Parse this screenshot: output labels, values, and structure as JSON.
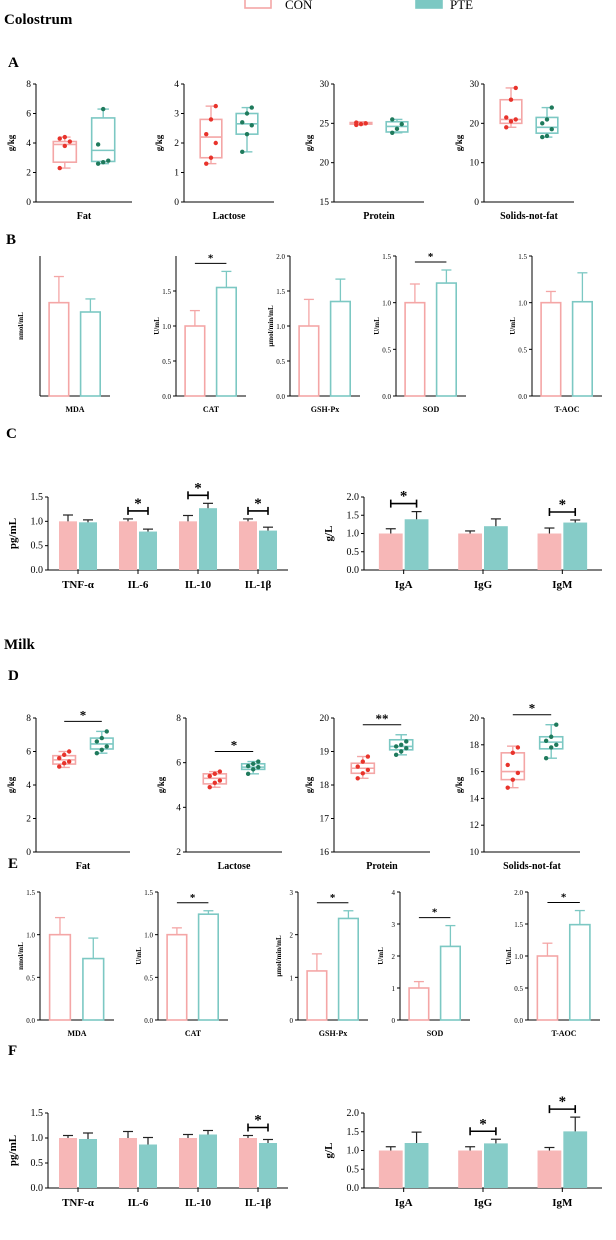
{
  "figure": {
    "legend": {
      "labels": [
        "CON",
        "PTE"
      ]
    },
    "sections": {
      "colostrum": "Colostrum",
      "milk": "Milk"
    },
    "panels": {
      "A": "A",
      "B": "B",
      "C": "C",
      "D": "D",
      "E": "E",
      "F": "F"
    }
  },
  "colors": {
    "con": "#f4a6a6",
    "pte": "#7cc8c3",
    "con_fill": "#f7b7b7",
    "pte_fill": "#86ccc8",
    "con_dot": "#e8332b",
    "pte_dot": "#1f7a5c"
  },
  "chart_data": [
    {
      "id": "A1",
      "type": "box",
      "xlabel": "Fat",
      "ylabel": "g/kg",
      "ylim": [
        0,
        8
      ],
      "ticks": [
        0,
        2,
        4,
        6,
        8
      ],
      "series": [
        {
          "name": "CON",
          "min": 2.3,
          "q1": 2.7,
          "median": 3.9,
          "q3": 4.1,
          "max": 4.4,
          "points": [
            2.3,
            3.8,
            4.1,
            4.3,
            4.4
          ]
        },
        {
          "name": "PTE",
          "min": 2.6,
          "q1": 2.75,
          "median": 3.5,
          "q3": 5.7,
          "max": 6.3,
          "points": [
            2.6,
            2.7,
            2.8,
            3.9,
            6.3
          ]
        }
      ]
    },
    {
      "id": "A2",
      "type": "box",
      "xlabel": "Lactose",
      "ylabel": "g/kg",
      "ylim": [
        0,
        4
      ],
      "ticks": [
        0,
        1,
        2,
        3,
        4
      ],
      "series": [
        {
          "name": "CON",
          "min": 1.3,
          "q1": 1.5,
          "median": 2.2,
          "q3": 2.8,
          "max": 3.25,
          "points": [
            1.3,
            1.5,
            2.0,
            2.3,
            2.8,
            3.25
          ]
        },
        {
          "name": "PTE",
          "min": 1.7,
          "q1": 2.3,
          "median": 2.65,
          "q3": 3.0,
          "max": 3.2,
          "points": [
            1.7,
            2.3,
            2.6,
            2.7,
            3.0,
            3.2
          ]
        }
      ]
    },
    {
      "id": "A3",
      "type": "box",
      "xlabel": "Protein",
      "ylabel": "g/kg",
      "ylim": [
        15,
        30
      ],
      "ticks": [
        15,
        20,
        25,
        30
      ],
      "series": [
        {
          "name": "CON",
          "min": 24.8,
          "q1": 24.9,
          "median": 25.0,
          "q3": 25.1,
          "max": 25.2,
          "points": [
            24.8,
            24.9,
            25.0,
            25.1
          ]
        },
        {
          "name": "PTE",
          "min": 23.8,
          "q1": 23.9,
          "median": 24.6,
          "q3": 25.2,
          "max": 25.5,
          "points": [
            23.8,
            24.3,
            24.9,
            25.5
          ]
        }
      ]
    },
    {
      "id": "A4",
      "type": "box",
      "xlabel": "Solids-not-fat",
      "ylabel": "g/kg",
      "ylim": [
        0,
        30
      ],
      "ticks": [
        0,
        10,
        20,
        30
      ],
      "series": [
        {
          "name": "CON",
          "min": 19.0,
          "q1": 20.0,
          "median": 21.0,
          "q3": 26.0,
          "max": 29.0,
          "points": [
            19.0,
            20.5,
            21.0,
            21.5,
            26.0,
            29.0
          ]
        },
        {
          "name": "PTE",
          "min": 16.5,
          "q1": 17.5,
          "median": 19.0,
          "q3": 21.5,
          "max": 24.0,
          "points": [
            16.5,
            16.8,
            18.5,
            20.0,
            21.0,
            24.0
          ]
        }
      ]
    },
    {
      "id": "B1",
      "type": "bar",
      "style": "outline",
      "xlabel": "MDA",
      "ylabel": "nmol/mL",
      "ylim": [
        0,
        1.5
      ],
      "ticks": [],
      "tick_labels": [],
      "series": [
        {
          "name": "CON",
          "value": 1.0,
          "error": 0.28
        },
        {
          "name": "PTE",
          "value": 0.9,
          "error": 0.14
        }
      ],
      "sig": null
    },
    {
      "id": "B2",
      "type": "bar",
      "style": "outline",
      "xlabel": "CAT",
      "ylabel": "U/mL",
      "ylim": [
        0,
        2.0
      ],
      "ticks": [
        0,
        0.5,
        1.0,
        1.5
      ],
      "tick_labels": [
        "0.0",
        "0.5",
        "1.0",
        "1.5"
      ],
      "series": [
        {
          "name": "CON",
          "value": 1.0,
          "error": 0.22
        },
        {
          "name": "PTE",
          "value": 1.55,
          "error": 0.23
        }
      ],
      "sig": "*"
    },
    {
      "id": "B3",
      "type": "bar",
      "style": "outline",
      "xlabel": "GSH-Px",
      "ylabel": "μmol/min/mL",
      "ylim": [
        0,
        2.0
      ],
      "ticks": [
        0,
        0.5,
        1.0,
        1.5,
        2.0
      ],
      "tick_labels": [
        "0.0",
        "0.5",
        "1.0",
        "1.5",
        "2.0"
      ],
      "series": [
        {
          "name": "CON",
          "value": 1.0,
          "error": 0.38
        },
        {
          "name": "PTE",
          "value": 1.35,
          "error": 0.32
        }
      ],
      "sig": null
    },
    {
      "id": "B4",
      "type": "bar",
      "style": "outline",
      "xlabel": "SOD",
      "ylabel": "U/mL",
      "ylim": [
        0,
        1.5
      ],
      "ticks": [
        0,
        0.5,
        1.0,
        1.5
      ],
      "tick_labels": [
        "0.0",
        "0.5",
        "1.0",
        "1.5"
      ],
      "series": [
        {
          "name": "CON",
          "value": 1.0,
          "error": 0.2
        },
        {
          "name": "PTE",
          "value": 1.21,
          "error": 0.14
        }
      ],
      "sig": "*"
    },
    {
      "id": "B5",
      "type": "bar",
      "style": "outline",
      "xlabel": "T-AOC",
      "ylabel": "U/mL",
      "ylim": [
        0,
        1.5
      ],
      "ticks": [
        0,
        0.5,
        1.0,
        1.5
      ],
      "tick_labels": [
        "0.0",
        "0.5",
        "1.0",
        "1.5"
      ],
      "series": [
        {
          "name": "CON",
          "value": 1.0,
          "error": 0.12
        },
        {
          "name": "PTE",
          "value": 1.01,
          "error": 0.31
        }
      ],
      "sig": null
    },
    {
      "id": "C1",
      "type": "grouped_bar",
      "style": "filled",
      "ylabel": "pg/mL",
      "ylim": [
        0,
        1.5
      ],
      "ticks": [
        0,
        0.5,
        1.0,
        1.5
      ],
      "tick_labels": [
        "0.0",
        "0.5",
        "1.0",
        "1.5"
      ],
      "categories": [
        "TNF-α",
        "IL-6",
        "IL-10",
        "IL-1β"
      ],
      "series": [
        {
          "name": "CON",
          "values": [
            1.0,
            1.0,
            1.0,
            1.0
          ],
          "errors": [
            0.13,
            0.05,
            0.12,
            0.05
          ]
        },
        {
          "name": "PTE",
          "values": [
            0.98,
            0.79,
            1.27,
            0.81
          ],
          "errors": [
            0.05,
            0.05,
            0.1,
            0.07
          ]
        }
      ],
      "sig": [
        null,
        "*",
        "*",
        "*"
      ]
    },
    {
      "id": "C2",
      "type": "grouped_bar",
      "style": "filled",
      "ylabel": "g/L",
      "ylim": [
        0,
        2.0
      ],
      "ticks": [
        0,
        0.5,
        1.0,
        1.5,
        2.0
      ],
      "tick_labels": [
        "0.0",
        "0.5",
        "1.0",
        "1.5",
        "2.0"
      ],
      "categories": [
        "IgA",
        "IgG",
        "IgM"
      ],
      "series": [
        {
          "name": "CON",
          "values": [
            1.0,
            1.0,
            1.0
          ],
          "errors": [
            0.13,
            0.07,
            0.15
          ]
        },
        {
          "name": "PTE",
          "values": [
            1.39,
            1.2,
            1.3
          ],
          "errors": [
            0.21,
            0.2,
            0.07
          ]
        }
      ],
      "sig": [
        "*",
        null,
        "*"
      ]
    },
    {
      "id": "D1",
      "type": "box",
      "xlabel": "Fat",
      "ylabel": "g/kg",
      "ylim": [
        0,
        8
      ],
      "ticks": [
        0,
        2,
        4,
        6,
        8
      ],
      "sig": "*",
      "series": [
        {
          "name": "CON",
          "min": 5.05,
          "q1": 5.25,
          "median": 5.5,
          "q3": 5.75,
          "max": 6.0,
          "points": [
            5.1,
            5.3,
            5.4,
            5.6,
            5.8,
            6.0
          ]
        },
        {
          "name": "PTE",
          "min": 5.9,
          "q1": 6.15,
          "median": 6.45,
          "q3": 6.8,
          "max": 7.2,
          "points": [
            5.9,
            6.1,
            6.3,
            6.6,
            6.8,
            7.2
          ]
        }
      ]
    },
    {
      "id": "D2",
      "type": "box",
      "xlabel": "Lactose",
      "ylabel": "g/kg",
      "ylim": [
        2,
        8
      ],
      "ticks": [
        2,
        4,
        6,
        8
      ],
      "sig": "*",
      "series": [
        {
          "name": "CON",
          "min": 4.9,
          "q1": 5.05,
          "median": 5.3,
          "q3": 5.5,
          "max": 5.6,
          "points": [
            4.9,
            5.1,
            5.2,
            5.4,
            5.5,
            5.6
          ]
        },
        {
          "name": "PTE",
          "min": 5.5,
          "q1": 5.7,
          "median": 5.8,
          "q3": 5.95,
          "max": 6.05,
          "points": [
            5.5,
            5.7,
            5.8,
            5.85,
            5.95,
            6.05
          ]
        }
      ]
    },
    {
      "id": "D3",
      "type": "box",
      "xlabel": "Protein",
      "ylabel": "g/kg",
      "ylim": [
        16,
        20
      ],
      "ticks": [
        16,
        17,
        18,
        19,
        20
      ],
      "sig": "**",
      "series": [
        {
          "name": "CON",
          "min": 18.2,
          "q1": 18.35,
          "median": 18.5,
          "q3": 18.65,
          "max": 18.85,
          "points": [
            18.2,
            18.35,
            18.45,
            18.55,
            18.7,
            18.85
          ]
        },
        {
          "name": "PTE",
          "min": 18.9,
          "q1": 19.05,
          "median": 19.15,
          "q3": 19.35,
          "max": 19.5,
          "points": [
            18.9,
            19.0,
            19.1,
            19.15,
            19.2,
            19.3
          ]
        }
      ]
    },
    {
      "id": "D4",
      "type": "box",
      "xlabel": "Solids-not-fat",
      "ylabel": "g/kg",
      "ylim": [
        10,
        20
      ],
      "ticks": [
        10,
        12,
        14,
        16,
        18,
        20
      ],
      "sig": "*",
      "series": [
        {
          "name": "CON",
          "min": 14.8,
          "q1": 15.4,
          "median": 16.0,
          "q3": 17.4,
          "max": 17.9,
          "points": [
            14.8,
            15.4,
            15.9,
            16.5,
            17.4,
            17.8
          ]
        },
        {
          "name": "PTE",
          "min": 17.0,
          "q1": 17.7,
          "median": 18.2,
          "q3": 18.6,
          "max": 19.5,
          "points": [
            17.0,
            17.8,
            18.0,
            18.3,
            18.6,
            19.5
          ]
        }
      ]
    },
    {
      "id": "E1",
      "type": "bar",
      "style": "outline",
      "xlabel": "MDA",
      "ylabel": "nmol/mL",
      "ylim": [
        0,
        1.5
      ],
      "ticks": [
        0,
        0.5,
        1.0,
        1.5
      ],
      "tick_labels": [
        "0.0",
        "0.5",
        "1.0",
        "1.5"
      ],
      "series": [
        {
          "name": "CON",
          "value": 1.0,
          "error": 0.2
        },
        {
          "name": "PTE",
          "value": 0.72,
          "error": 0.24
        }
      ],
      "sig": null
    },
    {
      "id": "E2",
      "type": "bar",
      "style": "outline",
      "xlabel": "CAT",
      "ylabel": "U/mL",
      "ylim": [
        0,
        1.5
      ],
      "ticks": [
        0,
        0.5,
        1.0,
        1.5
      ],
      "tick_labels": [
        "0.0",
        "0.5",
        "1.0",
        "1.5"
      ],
      "series": [
        {
          "name": "CON",
          "value": 1.0,
          "error": 0.08
        },
        {
          "name": "PTE",
          "value": 1.24,
          "error": 0.04
        }
      ],
      "sig": "*"
    },
    {
      "id": "E3",
      "type": "bar",
      "style": "outline",
      "xlabel": "GSH-Px",
      "ylabel": "μmol/min/mL",
      "ylim": [
        0,
        3
      ],
      "ticks": [
        0,
        1,
        2,
        3
      ],
      "tick_labels": [
        "0",
        "1",
        "2",
        "3"
      ],
      "series": [
        {
          "name": "CON",
          "value": 1.15,
          "error": 0.4
        },
        {
          "name": "PTE",
          "value": 2.38,
          "error": 0.18
        }
      ],
      "sig": "*"
    },
    {
      "id": "E4",
      "type": "bar",
      "style": "outline",
      "xlabel": "SOD",
      "ylabel": "U/mL",
      "ylim": [
        0,
        4
      ],
      "ticks": [
        0,
        1,
        2,
        3,
        4
      ],
      "tick_labels": [
        "0",
        "1",
        "2",
        "3",
        "4"
      ],
      "series": [
        {
          "name": "CON",
          "value": 1.0,
          "error": 0.2
        },
        {
          "name": "PTE",
          "value": 2.3,
          "error": 0.65
        }
      ],
      "sig": "*"
    },
    {
      "id": "E5",
      "type": "bar",
      "style": "outline",
      "xlabel": "T-AOC",
      "ylabel": "U/mL",
      "ylim": [
        0,
        2.0
      ],
      "ticks": [
        0,
        0.5,
        1.0,
        1.5,
        2.0
      ],
      "tick_labels": [
        "0.0",
        "0.5",
        "1.0",
        "1.5",
        "2.0"
      ],
      "series": [
        {
          "name": "CON",
          "value": 1.0,
          "error": 0.2
        },
        {
          "name": "PTE",
          "value": 1.49,
          "error": 0.22
        }
      ],
      "sig": "*"
    },
    {
      "id": "F1",
      "type": "grouped_bar",
      "style": "filled",
      "ylabel": "pg/mL",
      "ylim": [
        0,
        1.5
      ],
      "ticks": [
        0,
        0.5,
        1.0,
        1.5
      ],
      "tick_labels": [
        "0.0",
        "0.5",
        "1.0",
        "1.5"
      ],
      "categories": [
        "TNF-α",
        "IL-6",
        "IL-10",
        "IL-1β"
      ],
      "series": [
        {
          "name": "CON",
          "values": [
            1.0,
            1.0,
            1.0,
            1.0
          ],
          "errors": [
            0.05,
            0.13,
            0.07,
            0.05
          ]
        },
        {
          "name": "PTE",
          "values": [
            0.98,
            0.87,
            1.07,
            0.9
          ],
          "errors": [
            0.12,
            0.14,
            0.08,
            0.07
          ]
        }
      ],
      "sig": [
        null,
        null,
        null,
        "*"
      ]
    },
    {
      "id": "F2",
      "type": "grouped_bar",
      "style": "filled",
      "ylabel": "g/L",
      "ylim": [
        0,
        2.0
      ],
      "ticks": [
        0,
        0.5,
        1.0,
        1.5,
        2.0
      ],
      "tick_labels": [
        "0.0",
        "0.5",
        "1.0",
        "1.5",
        "2.0"
      ],
      "categories": [
        "IgA",
        "IgG",
        "IgM"
      ],
      "series": [
        {
          "name": "CON",
          "values": [
            1.0,
            1.0,
            1.0
          ],
          "errors": [
            0.1,
            0.1,
            0.08
          ]
        },
        {
          "name": "PTE",
          "values": [
            1.2,
            1.19,
            1.51
          ],
          "errors": [
            0.29,
            0.11,
            0.38
          ]
        }
      ],
      "sig": [
        null,
        "*",
        "*"
      ]
    }
  ]
}
